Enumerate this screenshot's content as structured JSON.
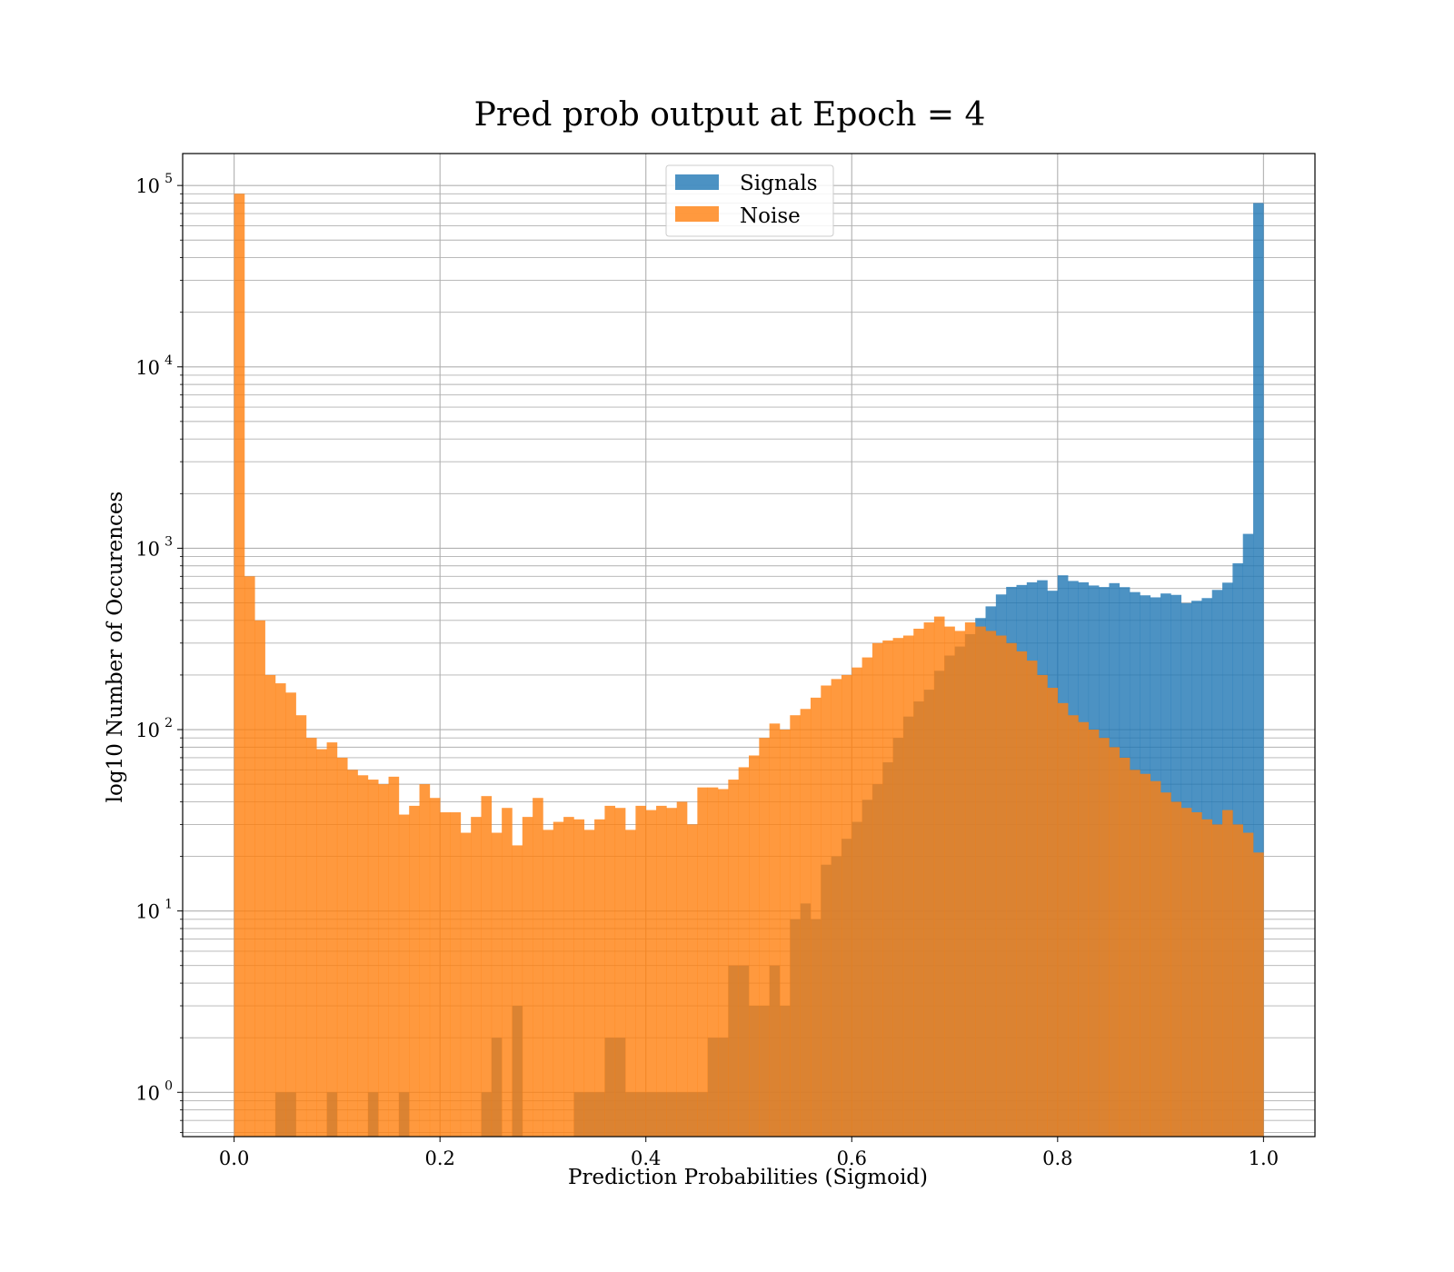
{
  "chart_data": {
    "type": "bar",
    "title": "Pred prob output at Epoch = 4",
    "xlabel": "Prediction Probabilities (Sigmoid)",
    "ylabel": "log10 Number of Occurences",
    "xlim": [
      -0.05,
      1.05
    ],
    "ylim": [
      0.57,
      150000
    ],
    "yscale": "log",
    "grid": true,
    "legend_position": "top-center",
    "bin_count": 100,
    "bin_range": [
      0,
      1
    ],
    "x_ticks": [
      "0.0",
      "0.2",
      "0.4",
      "0.6",
      "0.8",
      "1.0"
    ],
    "x_tick_values": [
      0,
      0.2,
      0.4,
      0.6,
      0.8,
      1.0
    ],
    "y_ticks": [
      {
        "base": "10",
        "exp": "0",
        "value": 1
      },
      {
        "base": "10",
        "exp": "1",
        "value": 10
      },
      {
        "base": "10",
        "exp": "2",
        "value": 100
      },
      {
        "base": "10",
        "exp": "3",
        "value": 1000
      },
      {
        "base": "10",
        "exp": "4",
        "value": 10000
      },
      {
        "base": "10",
        "exp": "5",
        "value": 100000
      }
    ],
    "series": [
      {
        "name": "Signals",
        "color": "#1f77b4",
        "values": [
          0,
          0,
          0,
          0,
          1,
          1,
          0,
          0,
          0,
          1,
          0,
          0,
          0,
          1,
          0,
          0,
          1,
          0,
          0,
          0,
          0,
          0,
          0,
          0,
          1,
          2,
          0,
          3,
          0,
          0,
          0,
          0,
          0,
          1,
          1,
          1,
          2,
          2,
          1,
          1,
          1,
          1,
          1,
          1,
          1,
          1,
          2,
          2,
          5,
          5,
          3,
          3,
          5,
          3,
          9,
          11,
          9,
          18,
          20,
          25,
          31,
          41,
          50,
          66,
          90,
          118,
          143,
          166,
          211,
          256,
          287,
          336,
          412,
          478,
          556,
          612,
          627,
          649,
          666,
          583,
          709,
          660,
          649,
          623,
          611,
          642,
          610,
          573,
          550,
          536,
          563,
          553,
          498,
          513,
          531,
          589,
          646,
          826,
          1200,
          80000
        ],
        "bins_from": 0,
        "bin_width": 0.01
      },
      {
        "name": "Noise",
        "color": "#ff7f0e",
        "values": [
          90000,
          700,
          400,
          200,
          180,
          160,
          120,
          90,
          78,
          85,
          70,
          60,
          56,
          53,
          50,
          55,
          34,
          38,
          50,
          42,
          35,
          35,
          27,
          33,
          43,
          27,
          37,
          23,
          33,
          42,
          28,
          31,
          33,
          32,
          28,
          32,
          38,
          37,
          28,
          38,
          36,
          38,
          37,
          40,
          30,
          48,
          48,
          47,
          53,
          62,
          72,
          90,
          108,
          100,
          120,
          130,
          150,
          175,
          190,
          200,
          220,
          250,
          300,
          310,
          320,
          330,
          360,
          390,
          420,
          370,
          350,
          390,
          370,
          350,
          330,
          300,
          270,
          240,
          200,
          170,
          140,
          120,
          110,
          100,
          90,
          80,
          70,
          60,
          57,
          52,
          45,
          40,
          37,
          35,
          32,
          30,
          36,
          30,
          27,
          21
        ],
        "bins_from": 0,
        "bin_width": 0.01
      }
    ]
  }
}
